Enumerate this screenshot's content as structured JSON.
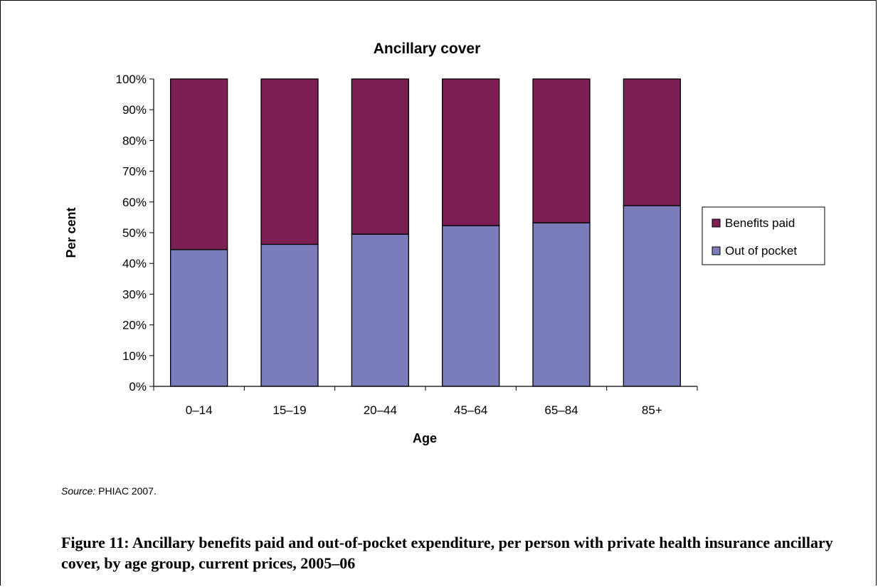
{
  "chart_data": {
    "type": "bar",
    "stacked": true,
    "title": "Ancillary cover",
    "xlabel": "Age",
    "ylabel": "Per cent",
    "categories": [
      "0–14",
      "15–19",
      "20–44",
      "45–64",
      "65–84",
      "85+"
    ],
    "series": [
      {
        "name": "Out of pocket",
        "color": "#7b7dbb",
        "values": [
          44.5,
          46.2,
          49.5,
          52.3,
          53.2,
          58.8
        ]
      },
      {
        "name": "Benefits paid",
        "color": "#7b1f55",
        "values": [
          55.5,
          53.8,
          50.5,
          47.7,
          46.8,
          41.2
        ]
      }
    ],
    "ylim": [
      0,
      100
    ],
    "yticks": [
      "0%",
      "10%",
      "20%",
      "30%",
      "40%",
      "50%",
      "60%",
      "70%",
      "80%",
      "90%",
      "100%"
    ],
    "legend_order": [
      "Benefits paid",
      "Out of pocket"
    ],
    "legend_position": "right",
    "grid": false
  },
  "source": {
    "label": "Source:",
    "text": " PHIAC 2007."
  },
  "caption": "Figure 11: Ancillary benefits paid and out-of-pocket expenditure, per person with private health insurance ancillary cover, by age group, current prices, 2005–06"
}
